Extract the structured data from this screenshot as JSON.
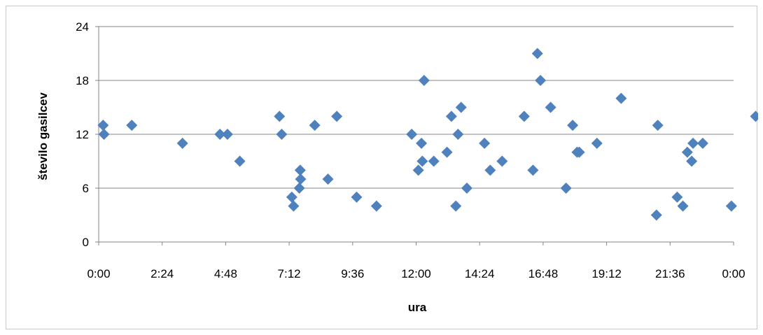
{
  "chart_data": {
    "type": "scatter",
    "title": "",
    "xlabel": "ura",
    "ylabel": "število gasilcev",
    "xlim": [
      "0:00",
      "0:00"
    ],
    "x_tick_labels": [
      "0:00",
      "2:24",
      "4:48",
      "7:12",
      "9:36",
      "12:00",
      "14:24",
      "16:48",
      "19:12",
      "21:36",
      "0:00"
    ],
    "ylim": [
      0,
      24
    ],
    "y_tick_labels": [
      "0",
      "6",
      "12",
      "18",
      "24"
    ],
    "grid": {
      "horizontal": true,
      "vertical": false
    },
    "legend": "none",
    "marker": {
      "shape": "diamond",
      "color": "#4f81bd"
    },
    "series": [
      {
        "points": [
          [
            "0:10",
            13
          ],
          [
            "0:12",
            12
          ],
          [
            "1:15",
            13
          ],
          [
            "3:10",
            11
          ],
          [
            "4:35",
            12
          ],
          [
            "4:52",
            12
          ],
          [
            "5:20",
            9
          ],
          [
            "6:50",
            14
          ],
          [
            "6:55",
            12
          ],
          [
            "7:18",
            5
          ],
          [
            "7:22",
            4
          ],
          [
            "7:35",
            6
          ],
          [
            "7:37",
            8
          ],
          [
            "7:38",
            7
          ],
          [
            "8:10",
            13
          ],
          [
            "8:40",
            7
          ],
          [
            "9:00",
            14
          ],
          [
            "9:45",
            5
          ],
          [
            "10:30",
            4
          ],
          [
            "11:50",
            12
          ],
          [
            "12:05",
            8
          ],
          [
            "12:12",
            11
          ],
          [
            "12:14",
            9
          ],
          [
            "12:18",
            18
          ],
          [
            "12:40",
            9
          ],
          [
            "13:10",
            10
          ],
          [
            "13:20",
            14
          ],
          [
            "13:30",
            4
          ],
          [
            "13:35",
            12
          ],
          [
            "13:42",
            15
          ],
          [
            "13:55",
            6
          ],
          [
            "14:35",
            11
          ],
          [
            "14:48",
            8
          ],
          [
            "15:15",
            9
          ],
          [
            "16:05",
            14
          ],
          [
            "16:25",
            8
          ],
          [
            "16:35",
            21
          ],
          [
            "16:42",
            18
          ],
          [
            "17:05",
            15
          ],
          [
            "17:40",
            6
          ],
          [
            "17:55",
            13
          ],
          [
            "18:05",
            10
          ],
          [
            "18:10",
            10
          ],
          [
            "18:50",
            11
          ],
          [
            "19:45",
            16
          ],
          [
            "21:05",
            3
          ],
          [
            "21:08",
            13
          ],
          [
            "21:52",
            5
          ],
          [
            "22:05",
            4
          ],
          [
            "22:15",
            10
          ],
          [
            "22:25",
            9
          ],
          [
            "22:28",
            11
          ],
          [
            "22:50",
            11
          ],
          [
            "23:55",
            4
          ],
          [
            "24:50",
            14
          ]
        ]
      }
    ]
  }
}
